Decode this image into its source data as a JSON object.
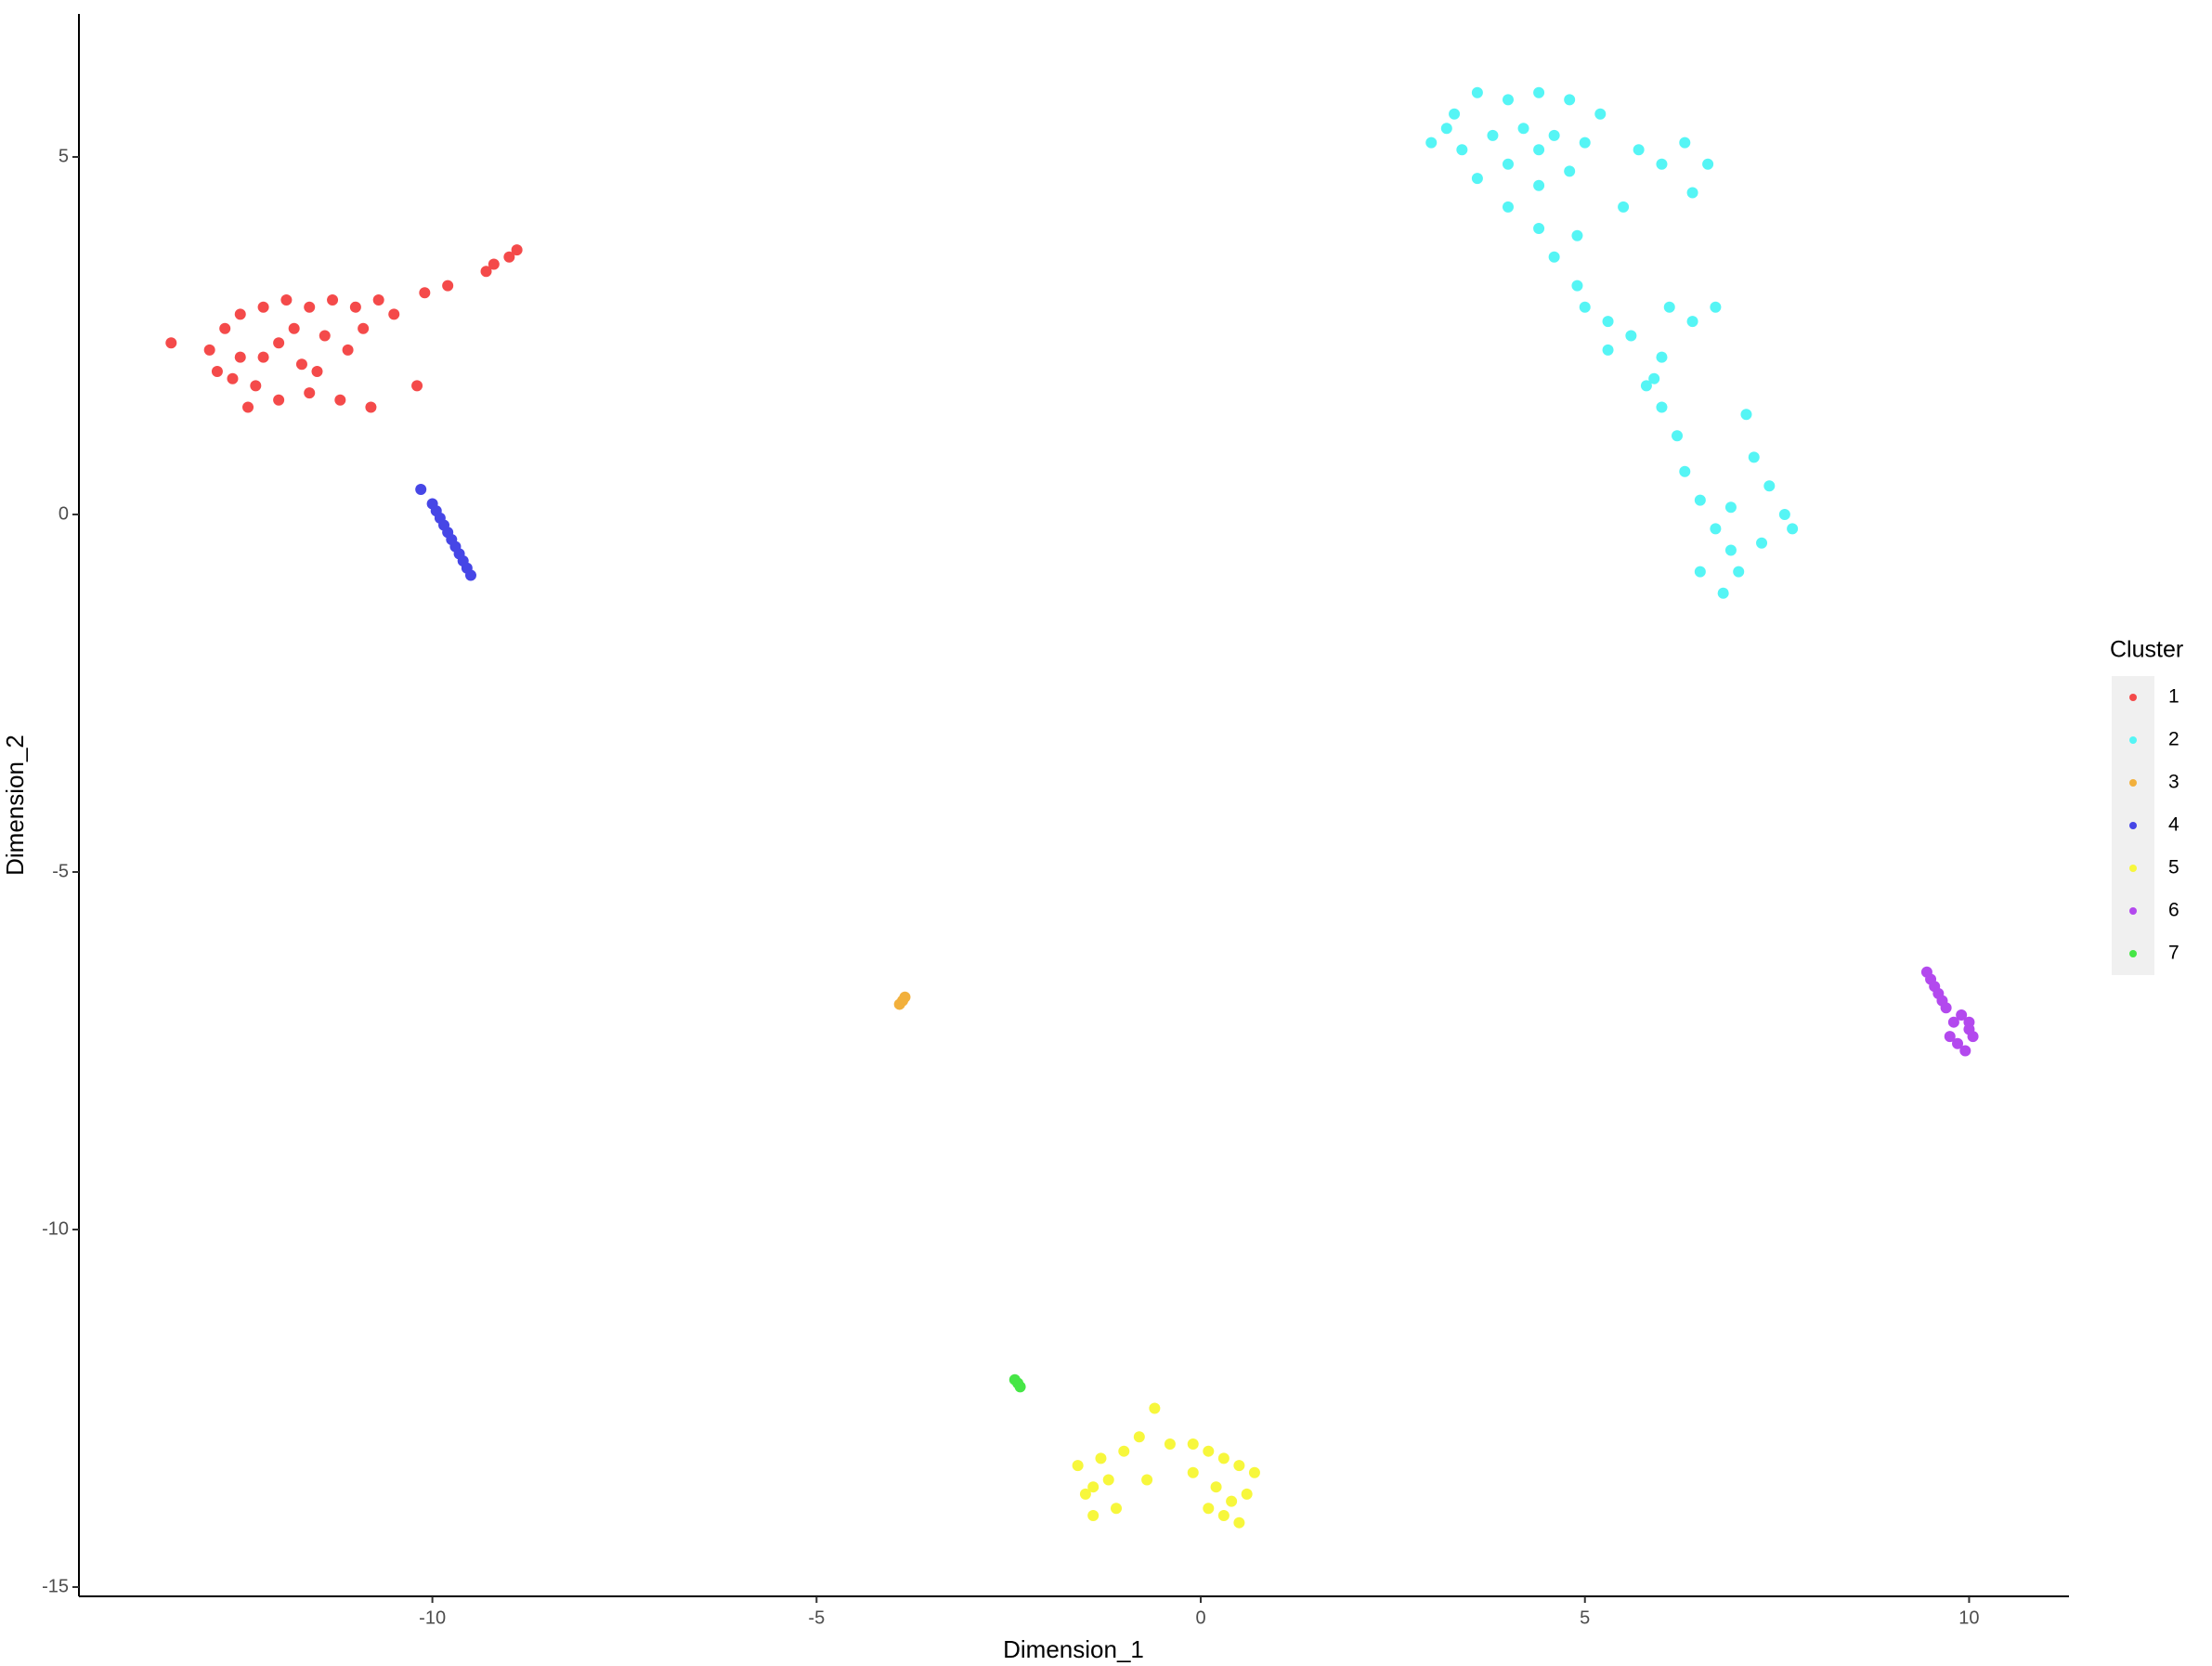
{
  "chart_data": {
    "type": "scatter",
    "x_label": "Dimension_1",
    "y_label": "Dimension_2",
    "legend_title": "Cluster",
    "legend_position": "right",
    "grid": false,
    "xlim": [
      -14.6,
      11.3
    ],
    "ylim": [
      -15.13,
      7.0
    ],
    "xticks": [
      -10,
      -5,
      0,
      5,
      10
    ],
    "yticks": [
      -15,
      -10,
      -5,
      0,
      5
    ],
    "series": [
      {
        "name": "1",
        "color": "#f44a4a",
        "x": [
          -13.4,
          -12.9,
          -12.7,
          -12.5,
          -12.2,
          -11.9,
          -11.6,
          -11.3,
          -11.0,
          -10.7,
          -12.8,
          -12.5,
          -12.3,
          -12.0,
          -11.7,
          -11.4,
          -11.1,
          -12.4,
          -12.0,
          -11.6,
          -11.2,
          -12.6,
          -11.8,
          -10.5,
          -10.1,
          -9.8,
          -10.2,
          -10.8,
          -9.2,
          -8.9,
          -9.0,
          -9.3,
          -12.2,
          -11.5,
          -10.9
        ],
        "values": [
          2.4,
          2.3,
          2.6,
          2.8,
          2.9,
          3.0,
          2.9,
          3.0,
          2.9,
          3.0,
          2.0,
          2.2,
          1.8,
          2.4,
          2.1,
          2.5,
          2.3,
          1.5,
          1.6,
          1.7,
          1.6,
          1.9,
          2.6,
          2.8,
          3.1,
          3.2,
          1.8,
          1.5,
          3.5,
          3.7,
          3.6,
          3.4,
          2.2,
          2.0,
          2.6
        ]
      },
      {
        "name": "2",
        "color": "#55f5f5",
        "x": [
          3.0,
          3.3,
          3.6,
          4.0,
          4.4,
          4.8,
          5.2,
          3.4,
          3.8,
          4.2,
          4.6,
          5.0,
          3.6,
          4.0,
          4.4,
          4.8,
          4.0,
          4.4,
          4.6,
          4.9,
          5.7,
          6.0,
          6.3,
          6.6,
          6.4,
          5.5,
          4.9,
          5.0,
          5.3,
          5.6,
          5.3,
          6.1,
          6.4,
          6.7,
          6.0,
          5.8,
          6.0,
          6.2,
          6.3,
          6.5,
          6.7,
          6.9,
          6.5,
          6.8,
          7.2,
          7.4,
          7.6,
          7.7,
          7.3,
          7.1,
          6.9,
          7.0,
          5.9,
          4.4,
          3.2
        ],
        "values": [
          5.2,
          5.6,
          5.9,
          5.8,
          5.9,
          5.8,
          5.6,
          5.1,
          5.3,
          5.4,
          5.3,
          5.2,
          4.7,
          4.9,
          4.6,
          4.8,
          4.3,
          4.0,
          3.6,
          3.9,
          5.1,
          4.9,
          5.2,
          4.9,
          4.5,
          4.3,
          3.2,
          2.9,
          2.7,
          2.5,
          2.3,
          2.9,
          2.7,
          2.9,
          2.2,
          1.8,
          1.5,
          1.1,
          0.6,
          0.2,
          -0.2,
          -0.5,
          -0.8,
          -1.1,
          0.8,
          0.4,
          0.0,
          -0.2,
          -0.4,
          1.4,
          0.1,
          -0.8,
          1.9,
          5.1,
          5.4
        ]
      },
      {
        "name": "3",
        "color": "#f2b03c",
        "x": [
          -3.92,
          -3.88,
          -3.85
        ],
        "values": [
          -6.85,
          -6.8,
          -6.75
        ]
      },
      {
        "name": "4",
        "color": "#4646e6",
        "x": [
          -10.15,
          -10.0,
          -9.95,
          -9.9,
          -9.85,
          -9.8,
          -9.75,
          -9.7,
          -9.65,
          -9.6,
          -9.55,
          -9.5
        ],
        "values": [
          0.35,
          0.15,
          0.05,
          -0.05,
          -0.15,
          -0.25,
          -0.35,
          -0.45,
          -0.55,
          -0.65,
          -0.75,
          -0.85
        ]
      },
      {
        "name": "5",
        "color": "#f7f73c",
        "x": [
          -1.6,
          -1.5,
          -1.4,
          -1.3,
          -1.2,
          -1.1,
          -1.0,
          -0.8,
          -0.6,
          -0.7,
          -0.4,
          -0.1,
          0.1,
          0.3,
          0.5,
          0.7,
          0.2,
          0.4,
          0.6,
          0.3,
          0.1,
          -0.1,
          -1.4,
          0.5
        ],
        "values": [
          -13.3,
          -13.7,
          -14.0,
          -13.2,
          -13.5,
          -13.9,
          -13.1,
          -12.9,
          -12.5,
          -13.5,
          -13.0,
          -13.0,
          -13.1,
          -13.2,
          -13.3,
          -13.4,
          -13.6,
          -13.8,
          -13.7,
          -14.0,
          -13.9,
          -13.4,
          -13.6,
          -14.1
        ]
      },
      {
        "name": "6",
        "color": "#b349ee",
        "x": [
          9.45,
          9.5,
          9.55,
          9.6,
          9.65,
          9.7,
          9.8,
          9.9,
          10.0,
          10.05,
          9.85,
          9.95,
          9.75,
          10.0
        ],
        "values": [
          -6.4,
          -6.5,
          -6.6,
          -6.7,
          -6.8,
          -6.9,
          -7.1,
          -7.0,
          -7.1,
          -7.3,
          -7.4,
          -7.5,
          -7.3,
          -7.2
        ]
      },
      {
        "name": "7",
        "color": "#46e646",
        "x": [
          -2.42,
          -2.38,
          -2.35
        ],
        "values": [
          -12.1,
          -12.15,
          -12.2
        ]
      }
    ]
  }
}
